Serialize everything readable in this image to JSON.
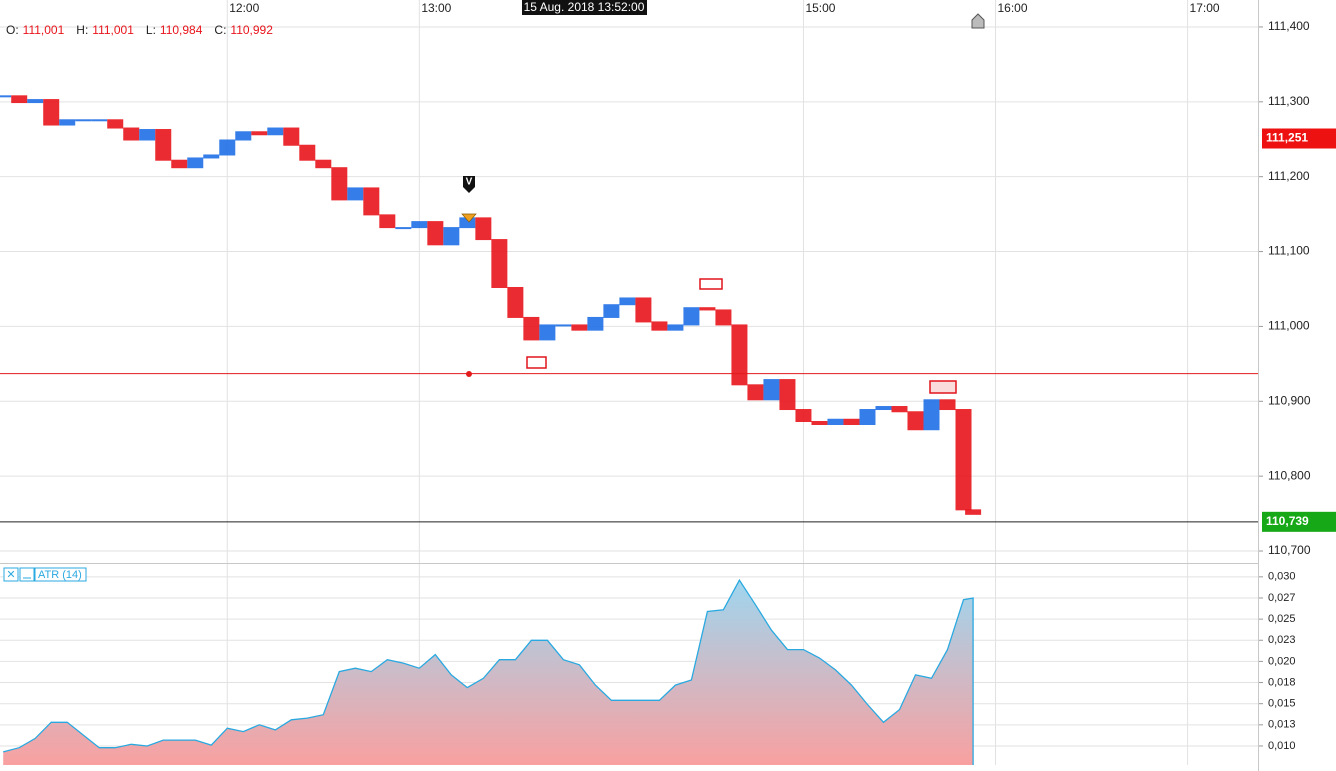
{
  "chart_data": [
    {
      "type": "ohlc-trend",
      "cursor_label": "15 Aug. 2018 13:52:00",
      "ohlc": [
        {
          "label": "O:",
          "value": "111,001"
        },
        {
          "label": "H:",
          "value": "111,001"
        },
        {
          "label": "L:",
          "value": "110,984"
        },
        {
          "label": "C:",
          "value": "110,992"
        }
      ],
      "x": [
        "10:50",
        "10:55",
        "11:00",
        "11:05",
        "11:10",
        "11:15",
        "11:20",
        "11:25",
        "11:30",
        "11:35",
        "11:40",
        "11:45",
        "11:50",
        "11:55",
        "12:00",
        "12:05",
        "12:10",
        "12:15",
        "12:20",
        "12:25",
        "12:30",
        "12:35",
        "12:40",
        "12:45",
        "12:50",
        "12:55",
        "13:00",
        "13:05",
        "13:10",
        "13:15",
        "13:20",
        "13:25",
        "13:30",
        "13:35",
        "13:40",
        "13:45",
        "13:50",
        "13:55",
        "14:00",
        "14:05",
        "14:10",
        "14:15",
        "14:20",
        "14:25",
        "14:30",
        "14:35",
        "14:40",
        "14:45",
        "14:50",
        "14:55",
        "15:00",
        "15:05",
        "15:10",
        "15:15",
        "15:20",
        "15:25",
        "15:30",
        "15:35",
        "15:40",
        "15:45",
        "15:50",
        "15:53"
      ],
      "values": [
        111.308,
        111.299,
        111.303,
        111.269,
        111.276,
        111.276,
        111.276,
        111.265,
        111.249,
        111.263,
        111.222,
        111.212,
        111.225,
        111.229,
        111.249,
        111.26,
        111.256,
        111.265,
        111.242,
        111.222,
        111.212,
        111.169,
        111.185,
        111.149,
        111.132,
        111.132,
        111.14,
        111.109,
        111.132,
        111.145,
        111.116,
        111.052,
        111.012,
        110.982,
        111.002,
        111.002,
        110.995,
        111.012,
        111.029,
        111.038,
        111.006,
        110.995,
        111.002,
        111.025,
        111.022,
        111.002,
        110.922,
        110.902,
        110.929,
        110.889,
        110.873,
        110.869,
        110.876,
        110.869,
        110.889,
        110.893,
        110.886,
        110.862,
        110.902,
        110.889,
        110.755,
        110.749
      ],
      "up_color": "#1f6fe5",
      "down_color": "#e8141b",
      "xlim": [
        "10:49",
        "17:22"
      ],
      "xticks": [
        "12:00",
        "13:00",
        "15:00",
        "16:00",
        "17:00"
      ],
      "ylim": [
        110.684,
        111.436
      ],
      "yticks": [
        {
          "value": 111.4,
          "label": "111,400"
        },
        {
          "value": 111.3,
          "label": "111,300"
        },
        {
          "value": 111.2,
          "label": "111,200"
        },
        {
          "value": 111.1,
          "label": "111,100"
        },
        {
          "value": 111.0,
          "label": "111,000"
        },
        {
          "value": 110.9,
          "label": "110,900"
        },
        {
          "value": 110.8,
          "label": "110,800"
        },
        {
          "value": 110.7,
          "label": "110,700"
        }
      ],
      "lines": [
        {
          "value": 110.937,
          "color": "#e31b1b"
        },
        {
          "value": 110.739,
          "color": "#222222"
        }
      ],
      "price_tags": [
        {
          "value": 111.251,
          "label": "111,251",
          "color": "#ee1111"
        },
        {
          "value": 110.739,
          "label": "110,739",
          "color": "#16a816"
        }
      ],
      "grid": true
    },
    {
      "type": "area",
      "title": "ATR (14)",
      "color": "#2aa9e0",
      "x": [
        "10:50",
        "10:55",
        "11:00",
        "11:05",
        "11:10",
        "11:15",
        "11:20",
        "11:25",
        "11:30",
        "11:35",
        "11:40",
        "11:45",
        "11:50",
        "11:55",
        "12:00",
        "12:05",
        "12:10",
        "12:15",
        "12:20",
        "12:25",
        "12:30",
        "12:35",
        "12:40",
        "12:45",
        "12:50",
        "12:55",
        "13:00",
        "13:05",
        "13:10",
        "13:15",
        "13:20",
        "13:25",
        "13:30",
        "13:35",
        "13:40",
        "13:45",
        "13:50",
        "13:55",
        "14:00",
        "14:05",
        "14:10",
        "14:15",
        "14:20",
        "14:25",
        "14:30",
        "14:35",
        "14:40",
        "14:45",
        "14:50",
        "14:55",
        "15:00",
        "15:05",
        "15:10",
        "15:15",
        "15:20",
        "15:25",
        "15:30",
        "15:35",
        "15:40",
        "15:45",
        "15:50",
        "15:53"
      ],
      "values": [
        0.0093,
        0.0098,
        0.0109,
        0.0128,
        0.0128,
        0.0113,
        0.0098,
        0.0098,
        0.0102,
        0.01,
        0.0107,
        0.0107,
        0.0107,
        0.0101,
        0.0121,
        0.0117,
        0.0125,
        0.0119,
        0.0131,
        0.0133,
        0.0137,
        0.0188,
        0.0192,
        0.0188,
        0.0202,
        0.0198,
        0.0192,
        0.0208,
        0.0184,
        0.0169,
        0.018,
        0.0202,
        0.0202,
        0.0225,
        0.0225,
        0.0202,
        0.0196,
        0.0172,
        0.0154,
        0.0154,
        0.0154,
        0.0154,
        0.0172,
        0.0178,
        0.0259,
        0.0261,
        0.0296,
        0.0267,
        0.0237,
        0.0214,
        0.0214,
        0.0204,
        0.019,
        0.0172,
        0.0149,
        0.0128,
        0.0143,
        0.0184,
        0.018,
        0.0214,
        0.0273,
        0.0275
      ],
      "xlim": [
        "10:49",
        "17:22"
      ],
      "ylim": [
        0.00775,
        0.0314
      ],
      "yticks": [
        {
          "value": 0.03,
          "label": "0,030"
        },
        {
          "value": 0.0275,
          "label": "0,027"
        },
        {
          "value": 0.025,
          "label": "0,025"
        },
        {
          "value": 0.0225,
          "label": "0,023"
        },
        {
          "value": 0.02,
          "label": "0,020"
        },
        {
          "value": 0.0175,
          "label": "0,018"
        },
        {
          "value": 0.015,
          "label": "0,015"
        },
        {
          "value": 0.0125,
          "label": "0,013"
        },
        {
          "value": 0.01,
          "label": "0,010"
        }
      ],
      "grid": true
    }
  ]
}
